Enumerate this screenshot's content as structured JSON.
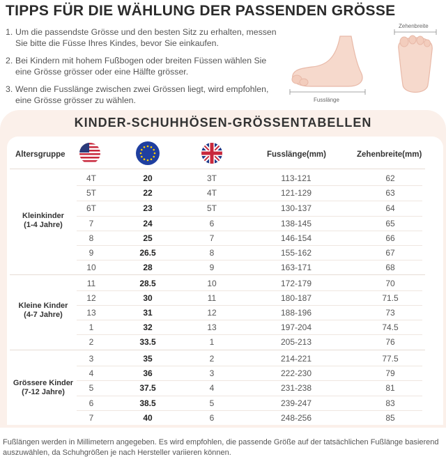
{
  "title": "TIPPS FÜR DIE WÄHLUNG DER PASSENDEN GRÖSSE",
  "tips": [
    {
      "num": "1.",
      "text": "Um die passendste Grösse und den besten Sitz zu erhalten, messen Sie bitte die Füsse Ihres Kindes, bevor Sie einkaufen."
    },
    {
      "num": "2.",
      "text": "Bei Kindern mit hohem Fußbogen oder breiten Füssen wählen Sie eine Grösse grösser oder eine Hälfte grösser."
    },
    {
      "num": "3.",
      "text": "Wenn die Fusslänge zwischen zwei Grössen liegt, wird empfohlen, eine Grösse grösser zu wählen."
    }
  ],
  "figures": {
    "foot_length_label": "Fusslänge",
    "toe_width_label": "Zehenbreite"
  },
  "table_title": "KINDER-SCHUHHÖSEN-GRÖSSENTABELLEN",
  "headers": {
    "age_group": "Altersgruppe",
    "foot_length": "Fusslänge(mm)",
    "toe_width": "Zehenbreite(mm)"
  },
  "flags": {
    "us": "us-flag-icon",
    "eu": "eu-flag-icon",
    "uk": "uk-flag-icon"
  },
  "groups": [
    {
      "label_line1": "Kleinkinder",
      "label_line2": "(1-4 Jahre)"
    },
    {
      "label_line1": "Kleine Kinder",
      "label_line2": "(4-7 Jahre)"
    },
    {
      "label_line1": "Grössere Kinder",
      "label_line2": "(7-12 Jahre)"
    }
  ],
  "rows": [
    {
      "us": "4T",
      "eu": "20",
      "uk": "3T",
      "foot": "113-121",
      "toe": "62"
    },
    {
      "us": "5T",
      "eu": "22",
      "uk": "4T",
      "foot": "121-129",
      "toe": "63"
    },
    {
      "us": "6T",
      "eu": "23",
      "uk": "5T",
      "foot": "130-137",
      "toe": "64"
    },
    {
      "us": "7",
      "eu": "24",
      "uk": "6",
      "foot": "138-145",
      "toe": "65"
    },
    {
      "us": "8",
      "eu": "25",
      "uk": "7",
      "foot": "146-154",
      "toe": "66"
    },
    {
      "us": "9",
      "eu": "26.5",
      "uk": "8",
      "foot": "155-162",
      "toe": "67"
    },
    {
      "us": "10",
      "eu": "28",
      "uk": "9",
      "foot": "163-171",
      "toe": "68"
    },
    {
      "us": "11",
      "eu": "28.5",
      "uk": "10",
      "foot": "172-179",
      "toe": "70"
    },
    {
      "us": "12",
      "eu": "30",
      "uk": "11",
      "foot": "180-187",
      "toe": "71.5"
    },
    {
      "us": "13",
      "eu": "31",
      "uk": "12",
      "foot": "188-196",
      "toe": "73"
    },
    {
      "us": "1",
      "eu": "32",
      "uk": "13",
      "foot": "197-204",
      "toe": "74.5"
    },
    {
      "us": "2",
      "eu": "33.5",
      "uk": "1",
      "foot": "205-213",
      "toe": "76"
    },
    {
      "us": "3",
      "eu": "35",
      "uk": "2",
      "foot": "214-221",
      "toe": "77.5"
    },
    {
      "us": "4",
      "eu": "36",
      "uk": "3",
      "foot": "222-230",
      "toe": "79"
    },
    {
      "us": "5",
      "eu": "37.5",
      "uk": "4",
      "foot": "231-238",
      "toe": "81"
    },
    {
      "us": "6",
      "eu": "38.5",
      "uk": "5",
      "foot": "239-247",
      "toe": "83"
    },
    {
      "us": "7",
      "eu": "40",
      "uk": "6",
      "foot": "248-256",
      "toe": "85"
    }
  ],
  "footer": "Fußlängen werden in Millimetern angegeben. Es wird empfohlen, die passende Größe auf der tatsächlichen Fußlänge basierend auszuwählen, da Schuhgrößen je nach Hersteller variieren können."
}
